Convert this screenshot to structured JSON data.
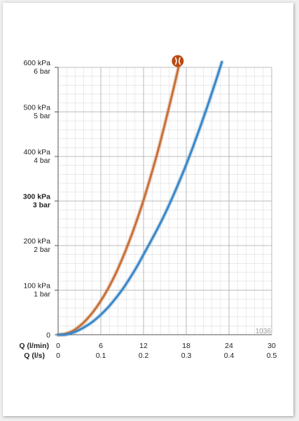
{
  "chart_data": {
    "type": "line",
    "x_label_flow_lpm": "Q (l/min)",
    "x_label_flow_ls": "Q (l/s)",
    "x_ticks_lpm": [
      "0",
      "6",
      "12",
      "18",
      "24",
      "30"
    ],
    "x_ticks_ls": [
      "0",
      "0.1",
      "0.2",
      "0.3",
      "0.4",
      "0.5"
    ],
    "xlim": [
      0,
      30
    ],
    "y_ticks": [
      {
        "value": 0,
        "kpa": "0",
        "bar": ""
      },
      {
        "value": 100,
        "kpa": "100 kPa",
        "bar": "1 bar"
      },
      {
        "value": 200,
        "kpa": "200 kPa",
        "bar": "2 bar"
      },
      {
        "value": 300,
        "kpa": "300 kPa",
        "bar": "3 bar",
        "bold": true
      },
      {
        "value": 400,
        "kpa": "400 kPa",
        "bar": "4 bar"
      },
      {
        "value": 500,
        "kpa": "500 kPa",
        "bar": "5 bar"
      },
      {
        "value": 600,
        "kpa": "600 kPa",
        "bar": "6 bar"
      }
    ],
    "ylim": [
      0,
      600
    ],
    "grid": true,
    "minor_grid_steps": 5,
    "series": [
      {
        "color": "#c8703a",
        "x": [
          0,
          1,
          2,
          3,
          4,
          5,
          6,
          7,
          8,
          9,
          10,
          11,
          12,
          13,
          14,
          15,
          16,
          17
        ],
        "values": [
          0,
          2,
          8,
          19,
          34,
          53,
          76,
          103,
          134,
          170,
          210,
          254,
          302,
          355,
          411,
          473,
          538,
          606
        ]
      },
      {
        "color": "#3a87c8",
        "x": [
          0,
          1,
          2,
          3,
          4,
          5,
          6,
          7,
          8,
          9,
          10,
          11,
          12,
          13,
          14,
          15,
          16,
          17,
          18,
          19,
          20,
          21,
          22,
          23
        ],
        "values": [
          0,
          0,
          4,
          11,
          20,
          31,
          45,
          61,
          80,
          101,
          125,
          151,
          180,
          209,
          239,
          271,
          306,
          343,
          382,
          424,
          468,
          514,
          562,
          612
        ]
      }
    ],
    "annotation_code": "1036",
    "annotation_icon": "symmetrical-valve-icon"
  }
}
